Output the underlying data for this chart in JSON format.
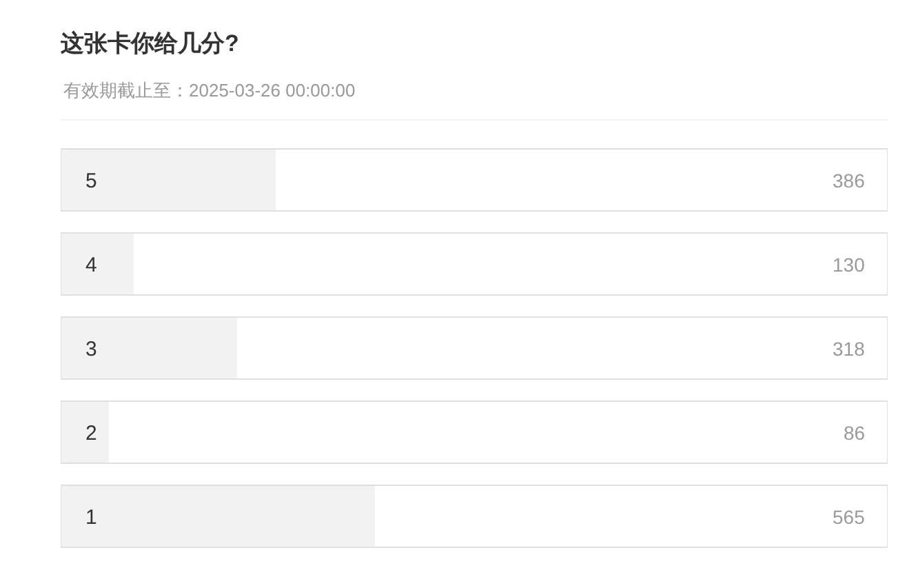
{
  "chart_data": {
    "type": "bar",
    "orientation": "horizontal",
    "title": "这张卡你给几分?",
    "subtitle": "有效期截止至：2025-03-26 00:00:00",
    "categories": [
      "5",
      "4",
      "3",
      "2",
      "1"
    ],
    "values": [
      386,
      130,
      318,
      86,
      565
    ],
    "color": "#f2f2f2",
    "xlim": [
      0,
      1485
    ],
    "data_labels": true,
    "tick_labels": "y"
  }
}
